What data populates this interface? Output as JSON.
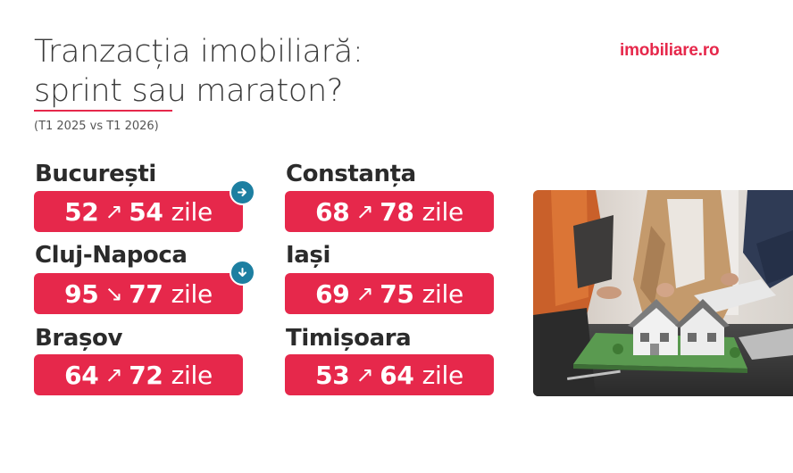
{
  "header": {
    "title_line1": "Tranzacția imobiliară:",
    "title_line2": "sprint sau maraton?",
    "subtitle": "(T1 2025 vs T1 2026)"
  },
  "brand": {
    "logo": "imobiliare.ro",
    "accent_color": "#e6284b",
    "badge_color": "#1d7fa1"
  },
  "cities": [
    {
      "name": "București",
      "from": "52",
      "arrow": "↗",
      "to": "54",
      "unit": "zile",
      "badge_icon": "arrow-right-icon"
    },
    {
      "name": "Constanța",
      "from": "68",
      "arrow": "↗",
      "to": "78",
      "unit": "zile"
    },
    {
      "name": "Cluj-Napoca",
      "from": "95",
      "arrow": "↘",
      "to": "77",
      "unit": "zile",
      "badge_icon": "arrow-down-icon"
    },
    {
      "name": "Iași",
      "from": "69",
      "arrow": "↗",
      "to": "75",
      "unit": "zile"
    },
    {
      "name": "Brașov",
      "from": "64",
      "arrow": "↗",
      "to": "72",
      "unit": "zile"
    },
    {
      "name": "Timișoara",
      "from": "53",
      "arrow": "↗",
      "to": "64",
      "unit": "zile"
    }
  ],
  "photo": {
    "icon": "house-model-photo"
  }
}
